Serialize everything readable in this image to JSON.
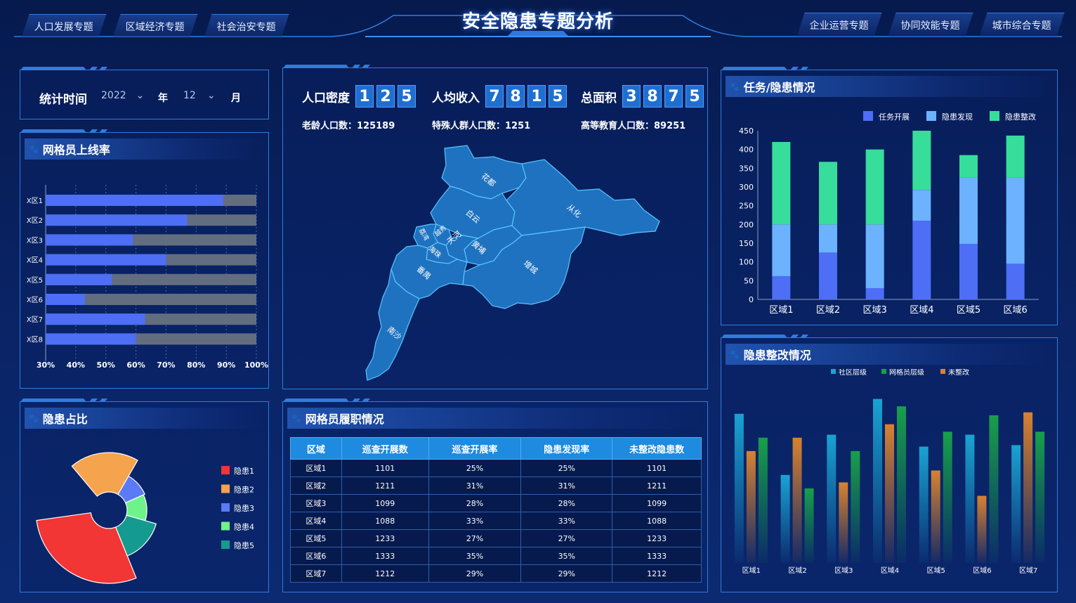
{
  "header": {
    "title": "安全隐患专题分析",
    "left_tabs": [
      {
        "label": "人口发展专题"
      },
      {
        "label": "区域经济专题"
      },
      {
        "label": "社会治安专题"
      }
    ],
    "right_tabs": [
      {
        "label": "企业运营专题"
      },
      {
        "label": "协同效能专题"
      },
      {
        "label": "城市综合专题"
      }
    ]
  },
  "time_filter": {
    "label": "统计时间",
    "year": "2022",
    "year_unit": "年",
    "month": "12",
    "month_unit": "月"
  },
  "online_rate": {
    "title": "网格员上线率",
    "chart_data": {
      "type": "bar",
      "orientation": "horizontal",
      "categories": [
        "X区1",
        "X区2",
        "X区3",
        "X区4",
        "X区5",
        "X区6",
        "X区7",
        "X区8"
      ],
      "values": [
        89,
        77,
        59,
        70,
        52,
        43,
        63,
        60
      ],
      "xticks": [
        "30%",
        "40%",
        "50%",
        "60%",
        "70%",
        "80%",
        "90%",
        "100%"
      ],
      "xlim": [
        30,
        100
      ],
      "colors": {
        "value": "#4d6ef5",
        "track": "#636d80"
      }
    }
  },
  "stats": {
    "population_density": {
      "label": "人口密度",
      "digits": [
        "1",
        "2",
        "5"
      ]
    },
    "income": {
      "label": "人均收入",
      "digits": [
        "7",
        "8",
        "1",
        "5"
      ]
    },
    "area": {
      "label": "总面积",
      "digits": [
        "3",
        "8",
        "7",
        "5"
      ]
    },
    "elderly": "老龄人口数：125189",
    "special": "特殊人群人口数：1251",
    "educated": "高等教育人口数：89251"
  },
  "map": {
    "regions": [
      {
        "name": "花都"
      },
      {
        "name": "从化"
      },
      {
        "name": "白云"
      },
      {
        "name": "增城"
      },
      {
        "name": "黄埔"
      },
      {
        "name": "天河"
      },
      {
        "name": "越秀"
      },
      {
        "name": "荔湾"
      },
      {
        "name": "海珠"
      },
      {
        "name": "番禺"
      },
      {
        "name": "南沙"
      }
    ],
    "colors": {
      "fill": "#1f72bf",
      "stroke": "#58c6ff"
    }
  },
  "hazard_ratio": {
    "title": "隐患占比",
    "chart_data": {
      "type": "pie",
      "style": "rose",
      "labels": [
        "隐患1",
        "隐患2",
        "隐患3",
        "隐患4",
        "隐患5"
      ],
      "values": [
        40,
        25,
        10,
        12,
        13
      ],
      "colors": [
        "#f23535",
        "#f5a34d",
        "#5b7af5",
        "#6ef28a",
        "#149a8e"
      ]
    }
  },
  "grid_duty": {
    "title": "网格员履职情况",
    "columns": [
      "区域",
      "巡查开展数",
      "巡查开展率",
      "隐患发现率",
      "未整改隐患数"
    ],
    "rows": [
      [
        "区域1",
        "1101",
        "25%",
        "25%",
        "1101"
      ],
      [
        "区域2",
        "1211",
        "31%",
        "31%",
        "1211"
      ],
      [
        "区域3",
        "1099",
        "28%",
        "28%",
        "1099"
      ],
      [
        "区域4",
        "1088",
        "33%",
        "33%",
        "1088"
      ],
      [
        "区域5",
        "1233",
        "27%",
        "27%",
        "1233"
      ],
      [
        "区域6",
        "1333",
        "35%",
        "35%",
        "1333"
      ],
      [
        "区域7",
        "1212",
        "29%",
        "29%",
        "1212"
      ]
    ]
  },
  "task_hazard": {
    "title": "任务/隐患情况",
    "chart_data": {
      "type": "bar",
      "stacked": true,
      "categories": [
        "区域1",
        "区域2",
        "区域3",
        "区域4",
        "区域5",
        "区域6"
      ],
      "series": [
        {
          "name": "任务开展",
          "values": [
            62,
            125,
            30,
            210,
            148,
            95
          ],
          "color": "#4d6ef5"
        },
        {
          "name": "隐患发现",
          "values": [
            138,
            75,
            170,
            82,
            177,
            230
          ],
          "color": "#6cb2ff"
        },
        {
          "name": "隐患整改",
          "values": [
            220,
            167,
            200,
            158,
            60,
            112
          ],
          "color": "#37dd9b"
        }
      ],
      "ylim": [
        0,
        450
      ],
      "yticks": [
        "0",
        "50",
        "100",
        "150",
        "200",
        "250",
        "300",
        "350",
        "400",
        "450"
      ],
      "legend": "top-right"
    }
  },
  "rectification": {
    "title": "隐患整改情况",
    "chart_data": {
      "type": "bar",
      "categories": [
        "区域1",
        "区域2",
        "区域3",
        "区域4",
        "区域5",
        "区域6",
        "区域7"
      ],
      "series": [
        {
          "name": "社区层级",
          "values": [
            200,
            118,
            172,
            220,
            156,
            172,
            158
          ],
          "color": "#1aa3d2"
        },
        {
          "name": "网格员层级",
          "values": [
            168,
            100,
            150,
            210,
            176,
            198,
            176
          ],
          "color": "#18a04a"
        },
        {
          "name": "未整改",
          "values": [
            150,
            168,
            108,
            186,
            124,
            90,
            202
          ],
          "color": "#d88230"
        }
      ],
      "ylim": [
        0,
        230
      ],
      "legend": "top-center"
    }
  }
}
